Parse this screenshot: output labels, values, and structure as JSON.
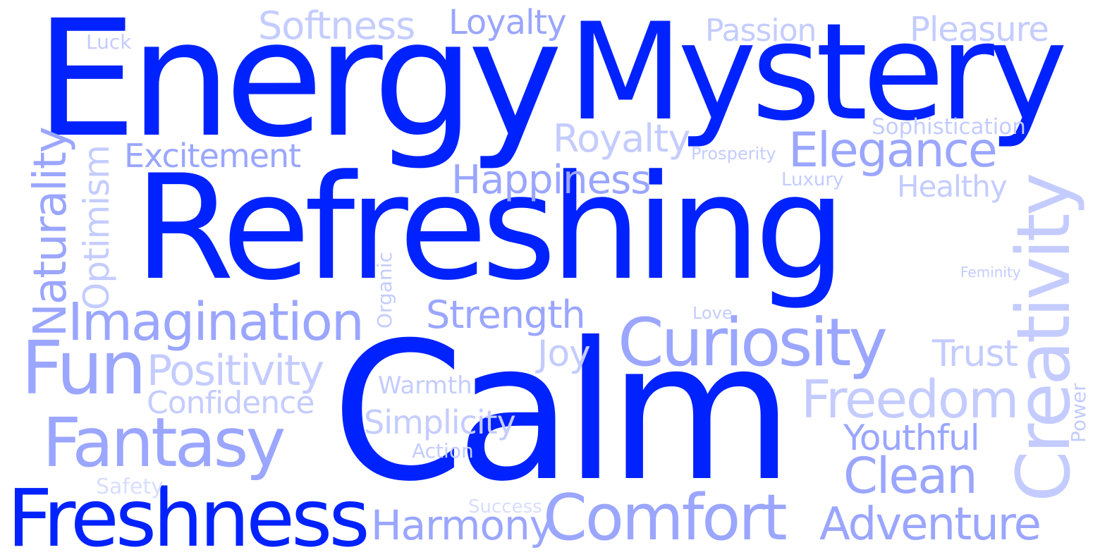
{
  "colors": {
    "strong": "#0022ff",
    "medium": "#9aa6ff",
    "light": "#c4ccff",
    "pale": "#d8ddff"
  },
  "words": [
    {
      "text": "Energy",
      "tone": "strong"
    },
    {
      "text": "Mystery",
      "tone": "strong"
    },
    {
      "text": "Refreshing",
      "tone": "strong"
    },
    {
      "text": "Calm",
      "tone": "strong"
    },
    {
      "text": "Freshness",
      "tone": "strong"
    },
    {
      "text": "Softness",
      "tone": "light"
    },
    {
      "text": "Loyalty",
      "tone": "medium"
    },
    {
      "text": "Passion",
      "tone": "light"
    },
    {
      "text": "Pleasure",
      "tone": "light"
    },
    {
      "text": "Luck",
      "tone": "light"
    },
    {
      "text": "Royalty",
      "tone": "light"
    },
    {
      "text": "Sophistication",
      "tone": "light"
    },
    {
      "text": "Excitement",
      "tone": "medium"
    },
    {
      "text": "Prosperity",
      "tone": "light"
    },
    {
      "text": "Elegance",
      "tone": "medium"
    },
    {
      "text": "Happiness",
      "tone": "medium"
    },
    {
      "text": "Luxury",
      "tone": "light"
    },
    {
      "text": "Healthy",
      "tone": "light"
    },
    {
      "text": "Naturality",
      "tone": "medium"
    },
    {
      "text": "Optimism",
      "tone": "light"
    },
    {
      "text": "Creativity",
      "tone": "light"
    },
    {
      "text": "Organic",
      "tone": "light"
    },
    {
      "text": "Feminity",
      "tone": "light"
    },
    {
      "text": "Imagination",
      "tone": "medium"
    },
    {
      "text": "Strength",
      "tone": "medium"
    },
    {
      "text": "Love",
      "tone": "light"
    },
    {
      "text": "Curiosity",
      "tone": "medium"
    },
    {
      "text": "Fun",
      "tone": "medium"
    },
    {
      "text": "Positivity",
      "tone": "light"
    },
    {
      "text": "Joy",
      "tone": "light"
    },
    {
      "text": "Trust",
      "tone": "light"
    },
    {
      "text": "Warmth",
      "tone": "light"
    },
    {
      "text": "Confidence",
      "tone": "light"
    },
    {
      "text": "Freedom",
      "tone": "light"
    },
    {
      "text": "Power",
      "tone": "light"
    },
    {
      "text": "Fantasy",
      "tone": "medium"
    },
    {
      "text": "Simplicity",
      "tone": "light"
    },
    {
      "text": "Youthful",
      "tone": "medium"
    },
    {
      "text": "Action",
      "tone": "light"
    },
    {
      "text": "Clean",
      "tone": "medium"
    },
    {
      "text": "Safety",
      "tone": "pale"
    },
    {
      "text": "Success",
      "tone": "pale"
    },
    {
      "text": "Harmony",
      "tone": "medium"
    },
    {
      "text": "Comfort",
      "tone": "medium"
    },
    {
      "text": "Adventure",
      "tone": "medium"
    }
  ]
}
